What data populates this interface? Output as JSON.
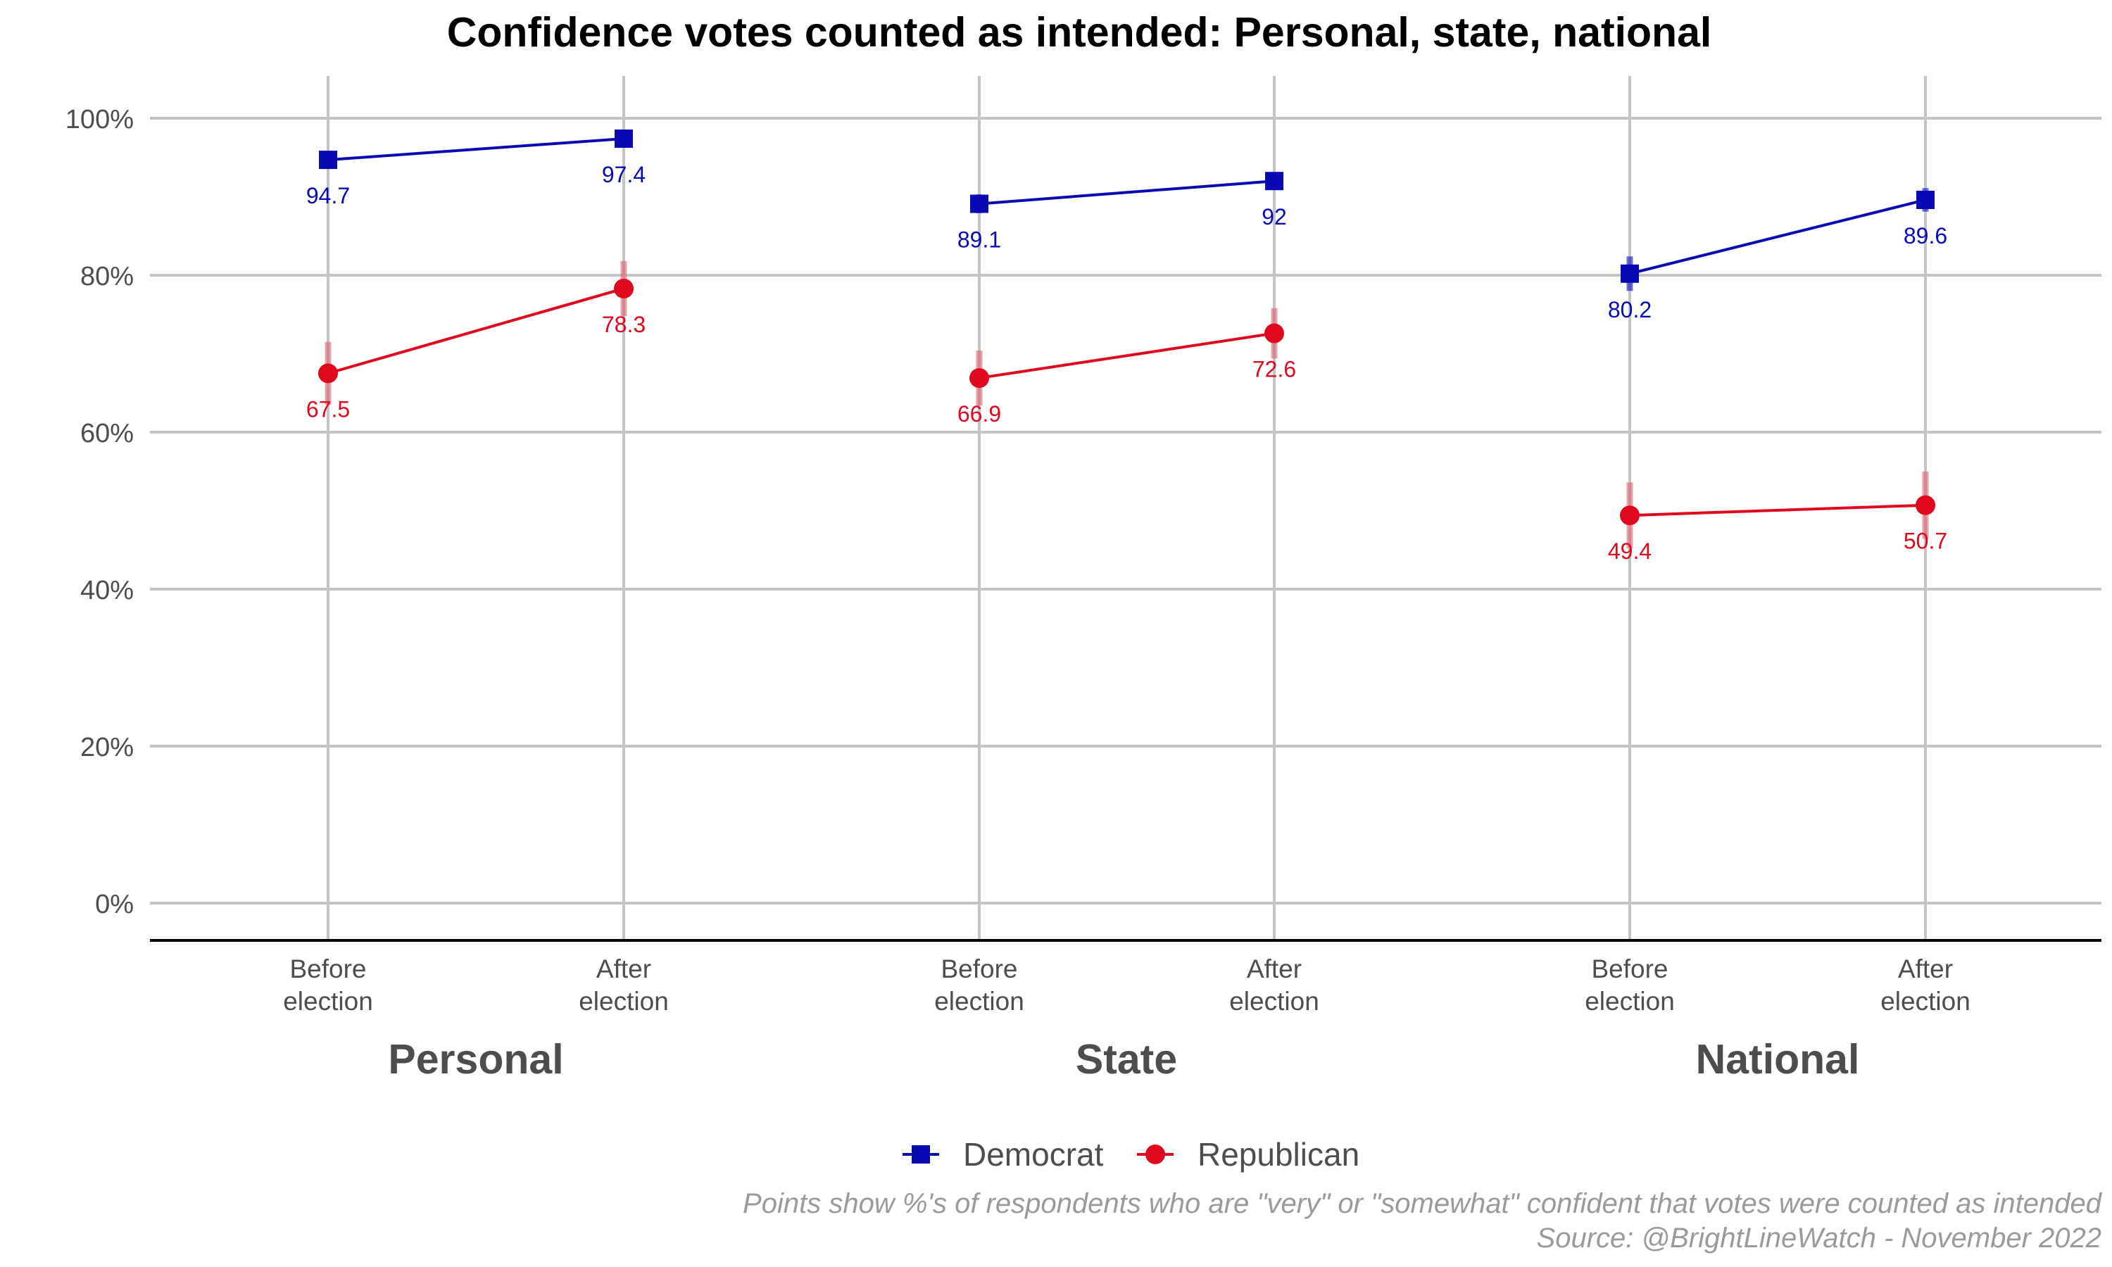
{
  "chart_data": {
    "type": "line",
    "title": "Confidence votes counted as intended: Personal, state, national",
    "panels": [
      "Personal",
      "State",
      "National"
    ],
    "categories": [
      "Before\nelection",
      "After\nelection"
    ],
    "ylim": [
      0,
      100
    ],
    "yticks": [
      0,
      20,
      40,
      60,
      80,
      100
    ],
    "ytick_labels": [
      "0%",
      "20%",
      "40%",
      "60%",
      "80%",
      "100%"
    ],
    "grid": true,
    "legend_position": "bottom",
    "series": [
      {
        "name": "Democrat",
        "color": "#0a0ab4",
        "marker": "square",
        "values": [
          [
            94.7,
            97.4
          ],
          [
            89.1,
            92
          ],
          [
            80.2,
            89.6
          ]
        ],
        "labels": [
          [
            "94.7",
            "97.4"
          ],
          [
            "89.1",
            "92"
          ],
          [
            "80.2",
            "89.6"
          ]
        ],
        "error": [
          [
            [
              93.9,
              95.5
            ],
            [
              96.8,
              98.0
            ]
          ],
          [
            [
              87.9,
              90.3
            ],
            [
              90.9,
              93.1
            ]
          ],
          [
            [
              78.0,
              82.4
            ],
            [
              88.1,
              91.1
            ]
          ]
        ]
      },
      {
        "name": "Republican",
        "color": "#e0081c",
        "error_color": "#e06070",
        "marker": "circle",
        "values": [
          [
            67.5,
            78.3
          ],
          [
            66.9,
            72.6
          ],
          [
            49.4,
            50.7
          ]
        ],
        "labels": [
          [
            "67.5",
            "78.3"
          ],
          [
            "66.9",
            "72.6"
          ],
          [
            "49.4",
            "50.7"
          ]
        ],
        "error": [
          [
            [
              63.5,
              71.5
            ],
            [
              74.8,
              81.8
            ]
          ],
          [
            [
              63.4,
              70.4
            ],
            [
              69.4,
              75.8
            ]
          ],
          [
            [
              45.2,
              53.6
            ],
            [
              46.4,
              55.0
            ]
          ]
        ]
      }
    ],
    "caption": [
      "Points show %'s of respondents who are \"very\" or \"somewhat\" confident that votes were counted as intended",
      "Source: @BrightLineWatch - November 2022"
    ]
  }
}
